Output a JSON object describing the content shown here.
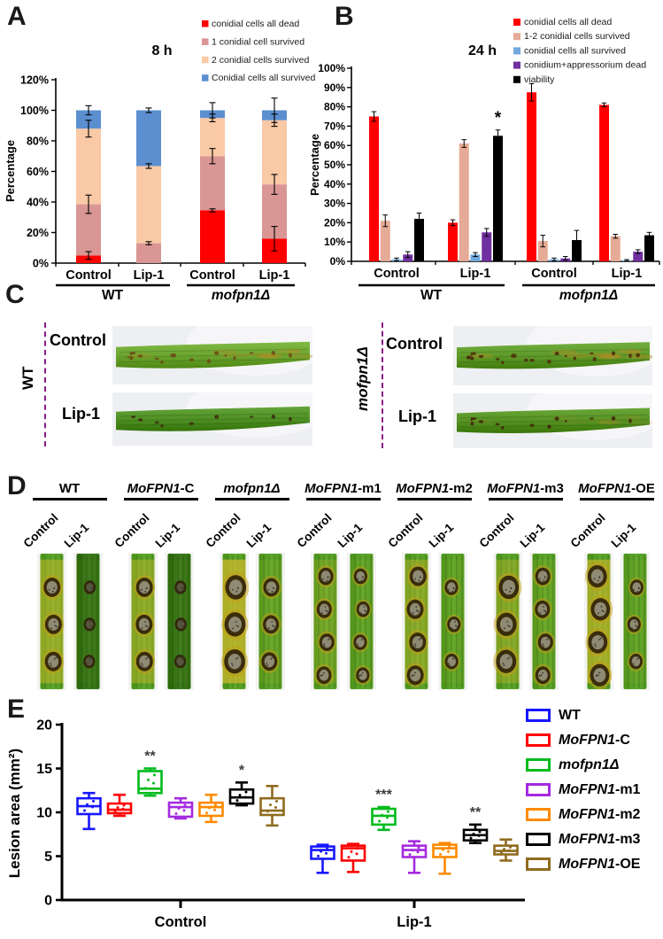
{
  "panels": {
    "a": {
      "label": "A"
    },
    "b": {
      "label": "B"
    },
    "c": {
      "label": "C",
      "groups": [
        {
          "side": "left",
          "em": "",
          "rest": "WT",
          "rows": [
            {
              "label": "Control",
              "leaf": "wt_control"
            },
            {
              "label": "Lip-1",
              "leaf": "wt_lip1"
            }
          ]
        },
        {
          "side": "right",
          "em": "mofpn1Δ",
          "rest": "",
          "rows": [
            {
              "label": "Control",
              "leaf": "mut_control"
            },
            {
              "label": "Lip-1",
              "leaf": "mut_lip1"
            }
          ]
        }
      ],
      "leaf_styles": {
        "wt_control": {
          "base": "#6aa42e",
          "spots": 16,
          "spot_color": "#6b4a16",
          "mottle": 0.75
        },
        "wt_lip1": {
          "base": "#4e8f23",
          "spots": 9,
          "spot_color": "#3f2c0e",
          "mottle": 0.0
        },
        "mut_control": {
          "base": "#5d9928",
          "spots": 20,
          "spot_color": "#4f2d0a",
          "mottle": 1.0
        },
        "mut_lip1": {
          "base": "#549122",
          "spots": 13,
          "spot_color": "#402708",
          "mottle": 0.3
        }
      }
    },
    "d": {
      "label": "D",
      "col_labels": [
        "Control",
        "Lip-1"
      ],
      "groups": [
        {
          "em": "",
          "rest": "WT",
          "leaves": [
            {
              "yellow": 0.7,
              "lesions": 3,
              "size": 1.0
            },
            {
              "yellow": 0.05,
              "lesions": 3,
              "size": 0.7,
              "dark": true
            }
          ]
        },
        {
          "em": "MoFPN1",
          "rest": "-C",
          "leaves": [
            {
              "yellow": 0.6,
              "lesions": 3,
              "size": 1.0
            },
            {
              "yellow": 0.05,
              "lesions": 3,
              "size": 0.7,
              "dark": true
            }
          ]
        },
        {
          "em": "mofpn1Δ",
          "rest": "",
          "leaves": [
            {
              "yellow": 1.0,
              "lesions": 3,
              "size": 1.25
            },
            {
              "yellow": 0.15,
              "lesions": 3,
              "size": 0.95
            }
          ]
        },
        {
          "em": "MoFPN1",
          "rest": "-m1",
          "leaves": [
            {
              "yellow": 0.3,
              "lesions": 4,
              "size": 0.9
            },
            {
              "yellow": 0.1,
              "lesions": 4,
              "size": 0.8
            }
          ]
        },
        {
          "em": "MoFPN1",
          "rest": "-m2",
          "leaves": [
            {
              "yellow": 0.55,
              "lesions": 4,
              "size": 1.0
            },
            {
              "yellow": 0.1,
              "lesions": 3,
              "size": 0.8
            }
          ]
        },
        {
          "em": "MoFPN1",
          "rest": "-m3",
          "leaves": [
            {
              "yellow": 0.5,
              "lesions": 3,
              "size": 1.2
            },
            {
              "yellow": 0.15,
              "lesions": 4,
              "size": 0.9
            }
          ]
        },
        {
          "em": "MoFPN1",
          "rest": "-OE",
          "leaves": [
            {
              "yellow": 0.85,
              "lesions": 4,
              "size": 1.15
            },
            {
              "yellow": 0.1,
              "lesions": 3,
              "size": 0.8
            }
          ]
        }
      ]
    },
    "e": {
      "label": "E"
    }
  },
  "chart_data": [
    {
      "id": "A",
      "type": "stacked-bar",
      "title": "8 h",
      "ylabel": "Percentage",
      "ylim": [
        0,
        120
      ],
      "ytick_step": 20,
      "ytick_suffix": "%",
      "categories": [
        "Control",
        "Lip-1",
        "Control",
        "Lip-1"
      ],
      "groups": [
        {
          "em": "",
          "rest": "WT"
        },
        {
          "em": "mofpn1Δ",
          "rest": ""
        }
      ],
      "series": [
        {
          "name": "conidial cells all dead",
          "color": "#fe0000",
          "values": [
            5,
            0,
            34.5,
            16
          ]
        },
        {
          "name": "1 conidial cell survived",
          "color": "#d99694",
          "values": [
            33.5,
            13,
            35.5,
            35.5
          ]
        },
        {
          "name": "2 conidial cells survived",
          "color": "#fac9a6",
          "values": [
            49.5,
            50.5,
            25,
            42
          ]
        },
        {
          "name": "Conidial cells all survived",
          "color": "#5b8fd0",
          "values": [
            12,
            36.5,
            5,
            6.5
          ]
        }
      ],
      "errors": [
        [
          2.5,
          0,
          1,
          8
        ],
        [
          6,
          1,
          5,
          6.5
        ],
        [
          5.5,
          1.5,
          2.5,
          4
        ],
        [
          3,
          1.5,
          5,
          8
        ]
      ]
    },
    {
      "id": "B",
      "type": "grouped-bar",
      "title": "24 h",
      "ylabel": "Percentage",
      "ylim": [
        0,
        100
      ],
      "ytick_step": 10,
      "ytick_suffix": "%",
      "categories": [
        "Control",
        "Lip-1",
        "Control",
        "Lip-1"
      ],
      "groups": [
        {
          "em": "",
          "rest": "WT"
        },
        {
          "em": "mofpn1Δ",
          "rest": ""
        }
      ],
      "series": [
        {
          "name": "conidial cells all dead",
          "color": "#fe0000",
          "values": [
            75,
            20,
            87.5,
            81
          ],
          "errors": [
            2.5,
            1.5,
            4.5,
            1
          ]
        },
        {
          "name": "1-2 conidial cells survived",
          "color": "#e5ab96",
          "values": [
            21,
            61,
            10.5,
            13
          ],
          "errors": [
            3,
            2,
            3,
            1
          ]
        },
        {
          "name": "conidial cells all survived",
          "color": "#70a8dc",
          "values": [
            1,
            3.5,
            1,
            0.5
          ],
          "errors": [
            0.7,
            1,
            0.7,
            0.4
          ]
        },
        {
          "name": "conidium+appressorium dead",
          "color": "#7030a0",
          "values": [
            3.5,
            15,
            1.5,
            5
          ],
          "errors": [
            1.5,
            2,
            1,
            1
          ]
        },
        {
          "name": "viability",
          "color": "#000000",
          "values": [
            22,
            65,
            11,
            13.5
          ],
          "errors": [
            3,
            3,
            5,
            1.5
          ]
        }
      ],
      "annotations": [
        {
          "cat": 1,
          "series": 4,
          "text": "*"
        }
      ]
    },
    {
      "id": "E",
      "type": "box",
      "ylabel": "Lesion area (mm²)",
      "ylim": [
        0,
        20
      ],
      "ytick_step": 5,
      "groups": [
        "Control",
        "Lip-1"
      ],
      "series": [
        {
          "name": "WT",
          "em": "",
          "rest": "WT",
          "color": "#1717ff",
          "boxes": [
            [
              8.1,
              9.8,
              10.7,
              11.6,
              12.2
            ],
            [
              3.1,
              4.7,
              5.7,
              6.1,
              6.3
            ]
          ]
        },
        {
          "name": "MoFPN1-C",
          "em": "MoFPN1",
          "rest": "-C",
          "color": "#fe0000",
          "boxes": [
            [
              9.6,
              9.9,
              10.3,
              11.0,
              12.0
            ],
            [
              3.2,
              4.5,
              5.9,
              6.2,
              6.4
            ]
          ]
        },
        {
          "name": "mofpn1Δ",
          "em": "mofpn1Δ",
          "rest": "",
          "color": "#00bb1d",
          "boxes": [
            [
              11.9,
              12.2,
              12.7,
              14.7,
              15.0
            ],
            [
              8.0,
              8.6,
              9.6,
              10.4,
              10.6
            ]
          ]
        },
        {
          "name": "MoFPN1-m1",
          "em": "MoFPN1",
          "rest": "-m1",
          "color": "#a52ae0",
          "boxes": [
            [
              9.3,
              9.5,
              10.6,
              11.1,
              11.6
            ],
            [
              3.1,
              4.9,
              5.7,
              6.2,
              6.7
            ]
          ]
        },
        {
          "name": "MoFPN1-m2",
          "em": "MoFPN1",
          "rest": "-m2",
          "color": "#ff8a00",
          "boxes": [
            [
              8.9,
              9.6,
              10.6,
              11.1,
              12.0
            ],
            [
              3.0,
              4.9,
              5.9,
              6.3,
              6.5
            ]
          ]
        },
        {
          "name": "MoFPN1-m3",
          "em": "MoFPN1",
          "rest": "-m3",
          "color": "#000000",
          "boxes": [
            [
              10.8,
              11.0,
              11.7,
              12.6,
              13.4
            ],
            [
              6.5,
              6.8,
              7.4,
              8.0,
              8.6
            ]
          ]
        },
        {
          "name": "MoFPN1-OE",
          "em": "MoFPN1",
          "rest": "-OE",
          "color": "#8f6b1e",
          "boxes": [
            [
              8.5,
              9.7,
              10.2,
              11.6,
              13.0
            ],
            [
              4.5,
              5.2,
              5.6,
              6.2,
              6.9
            ]
          ]
        }
      ],
      "annotations": [
        {
          "group": 0,
          "series": 2,
          "text": "**"
        },
        {
          "group": 0,
          "series": 5,
          "text": "*"
        },
        {
          "group": 1,
          "series": 2,
          "text": "***"
        },
        {
          "group": 1,
          "series": 5,
          "text": "**"
        }
      ]
    }
  ]
}
